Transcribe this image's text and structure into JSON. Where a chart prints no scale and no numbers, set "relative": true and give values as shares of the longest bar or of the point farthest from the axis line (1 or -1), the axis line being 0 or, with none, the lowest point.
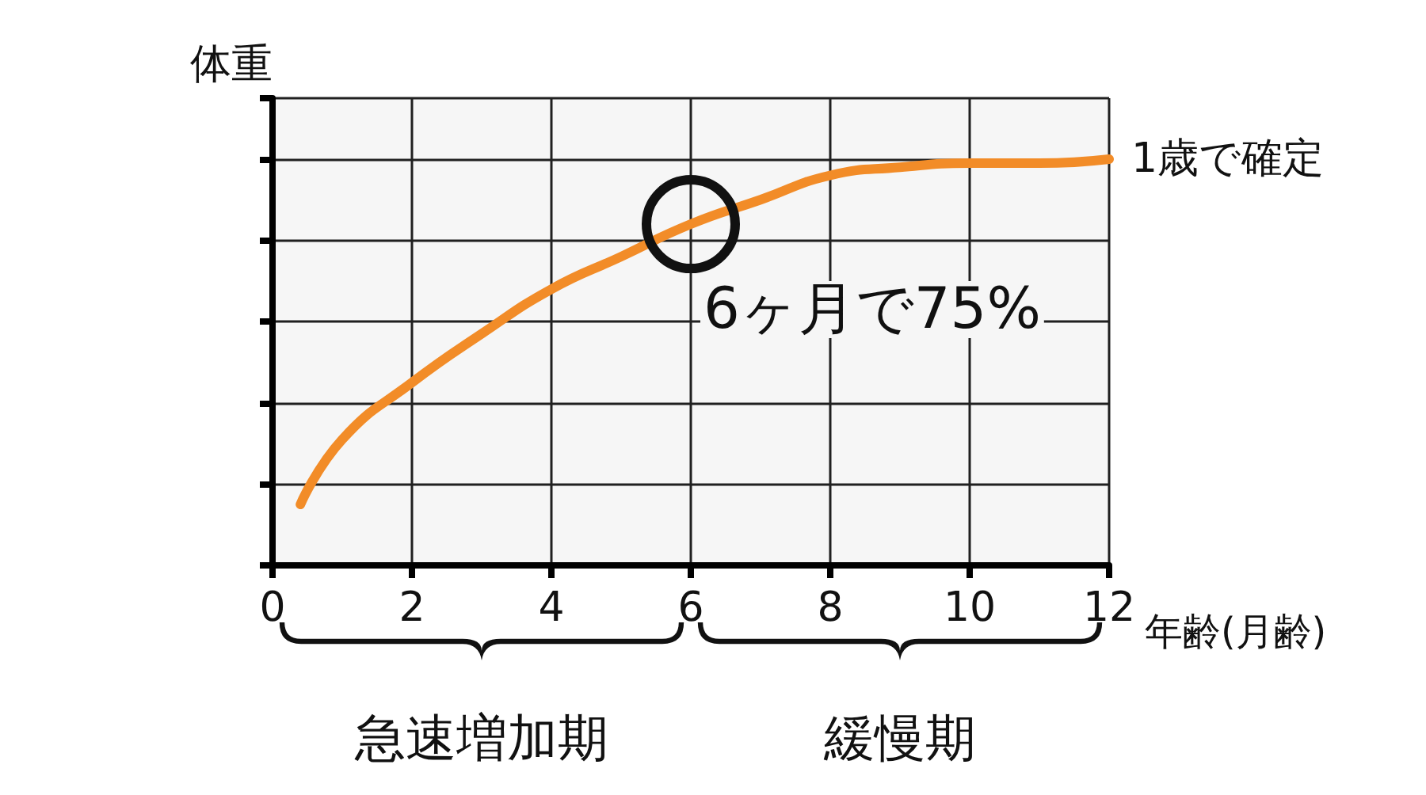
{
  "chart_data": {
    "type": "line",
    "relative": true,
    "xlabel": "年齢(月齢)",
    "ylabel": "体重",
    "x": [
      0.4,
      1,
      2,
      3,
      4,
      5,
      6,
      7,
      8,
      9,
      10,
      11,
      12
    ],
    "xlim": [
      0,
      12
    ],
    "xticks": [
      0,
      2,
      4,
      6,
      8,
      10,
      12
    ],
    "grid": true,
    "series": [
      {
        "color": "#f28c28",
        "values": [
          0.15,
          0.31,
          0.45,
          0.57,
          0.68,
          0.76,
          0.84,
          0.9,
          0.96,
          0.98,
          0.99,
          0.99,
          1
        ]
      }
    ],
    "annotations": [
      {
        "text": "6ヶ月で75%",
        "x": 6,
        "y": 0.84
      },
      {
        "text": "1歳で確定",
        "x": 12,
        "y": 1
      }
    ],
    "bands": [
      {
        "axis": "x",
        "from": 0,
        "to": 6,
        "label": "急速増加期"
      },
      {
        "axis": "x",
        "from": 6,
        "to": 12,
        "label": "緩慢期"
      }
    ]
  }
}
